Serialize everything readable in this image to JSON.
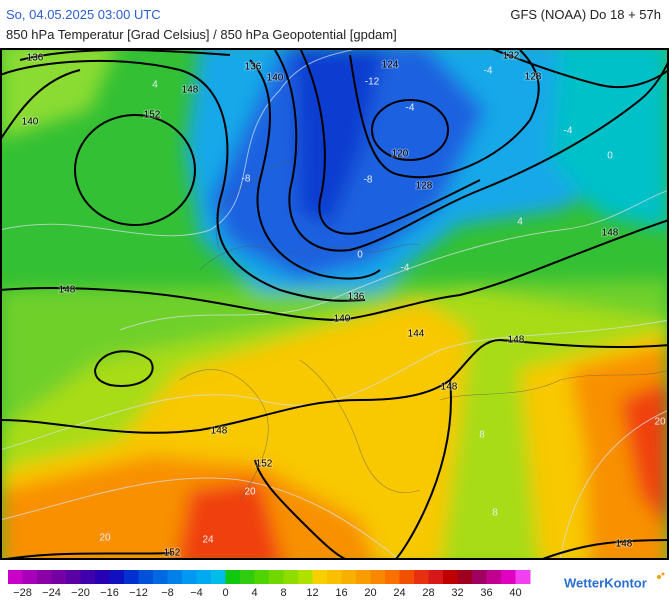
{
  "header": {
    "datetime": "So, 04.05.2025 03:00 UTC",
    "model": "GFS (NOAA) Do 18 + 57h",
    "subtitle": "850 hPa Temperatur [Grad Celsius] / 850 hPa Geopotential [gpdam]"
  },
  "map": {
    "geopotential_labels": [
      "136",
      "140",
      "148",
      "152",
      "136",
      "140",
      "124",
      "132",
      "128",
      "120",
      "128",
      "136",
      "140",
      "148",
      "144",
      "148",
      "148",
      "148",
      "148",
      "152",
      "152",
      "148"
    ],
    "isotherm_labels": [
      "4",
      "-12",
      "-4",
      "-4",
      "-4",
      "0",
      "-8",
      "-8",
      "0",
      "4",
      "-4",
      "8",
      "8",
      "20",
      "20",
      "24",
      "20"
    ]
  },
  "colorbar": {
    "colors": [
      "#c800c8",
      "#a800b8",
      "#8c00a8",
      "#7400a4",
      "#5a00a4",
      "#4000ac",
      "#2800b4",
      "#1010c0",
      "#0030d0",
      "#0050d8",
      "#0068e0",
      "#0080e8",
      "#0098f0",
      "#00aaf0",
      "#00bce8",
      "#10c810",
      "#30cc10",
      "#50d400",
      "#70d800",
      "#90dc00",
      "#b0e000",
      "#f8d000",
      "#f8c000",
      "#f8b000",
      "#f89c00",
      "#f88800",
      "#f87000",
      "#f05000",
      "#e83010",
      "#d81818",
      "#c00000",
      "#a00020",
      "#a00060",
      "#c00090",
      "#e000c0",
      "#f040f0"
    ],
    "labels": [
      "−28",
      "−24",
      "−20",
      "−16",
      "−12",
      "−8",
      "−4",
      "0",
      "4",
      "8",
      "12",
      "16",
      "20",
      "24",
      "28",
      "32",
      "36",
      "40"
    ]
  },
  "brand": "WetterKontor"
}
